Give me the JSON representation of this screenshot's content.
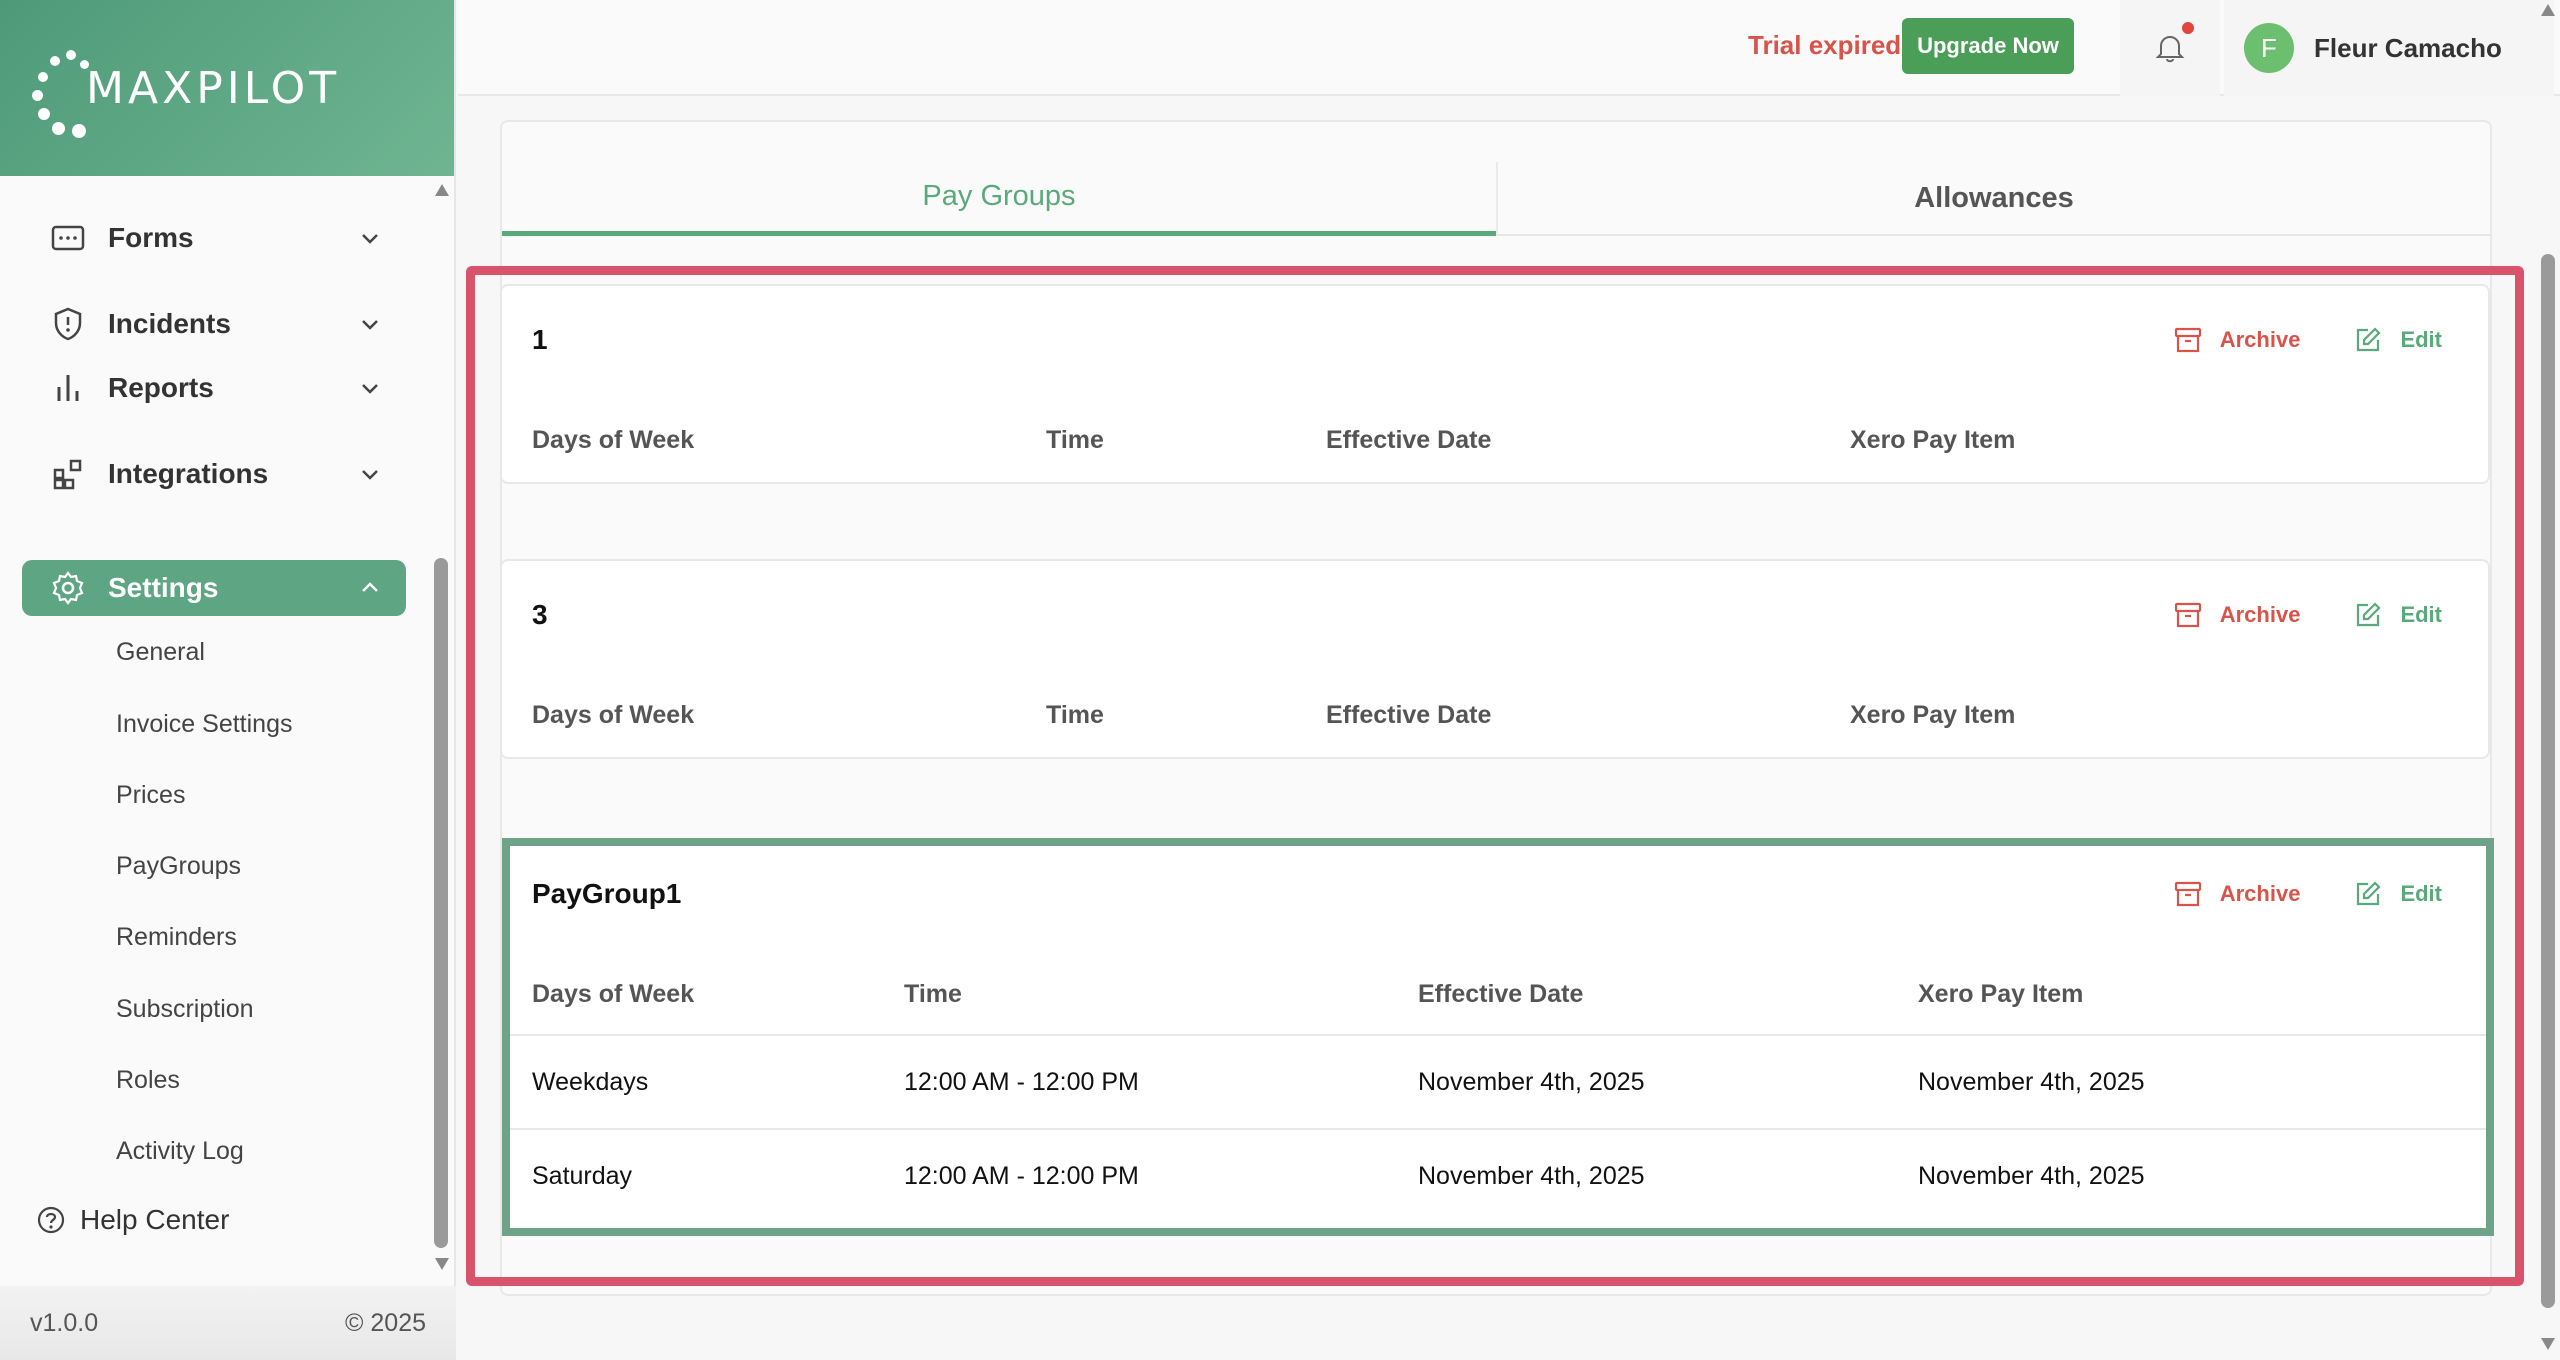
{
  "brand": {
    "name": "MAXPILOT"
  },
  "sidebar": {
    "items": [
      {
        "label": "Forms",
        "icon": "form-icon"
      },
      {
        "label": "Incidents",
        "icon": "shield-alert-icon"
      },
      {
        "label": "Reports",
        "icon": "bar-chart-icon"
      },
      {
        "label": "Integrations",
        "icon": "integrations-icon"
      },
      {
        "label": "Settings",
        "icon": "gear-icon",
        "active": true
      }
    ],
    "settings_sub": [
      "General",
      "Invoice Settings",
      "Prices",
      "PayGroups",
      "Reminders",
      "Subscription",
      "Roles",
      "Activity Log"
    ],
    "help": "Help Center",
    "version": "v1.0.0",
    "copyright": "© 2025"
  },
  "topbar": {
    "trial_status": "Trial expired",
    "upgrade_label": "Upgrade Now",
    "user_initial": "F",
    "user_name": "Fleur Camacho"
  },
  "tabs": {
    "pay_groups": "Pay Groups",
    "allowances": "Allowances"
  },
  "actions": {
    "archive": "Archive",
    "edit": "Edit"
  },
  "columns": [
    "Days of Week",
    "Time",
    "Effective Date",
    "Xero Pay Item"
  ],
  "groups": [
    {
      "name": "1",
      "rows": []
    },
    {
      "name": "3",
      "rows": []
    },
    {
      "name": "PayGroup1",
      "rows": [
        {
          "days": "Weekdays",
          "time": "12:00 AM - 12:00 PM",
          "effective": "November 4th, 2025",
          "xero": "November 4th, 2025"
        },
        {
          "days": "Saturday",
          "time": "12:00 AM - 12:00 PM",
          "effective": "November 4th, 2025",
          "xero": "November 4th, 2025"
        }
      ]
    }
  ],
  "colors": {
    "accent": "#5ea584",
    "danger": "#d8544a",
    "highlight_red": "#d9546a",
    "highlight_green": "#6fa388"
  }
}
